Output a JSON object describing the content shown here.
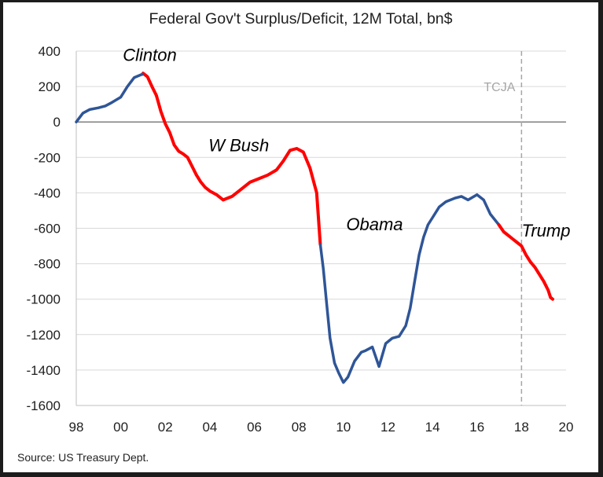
{
  "chart_data": {
    "type": "line",
    "title": "Federal Gov't Surplus/Deficit, 12M Total, bn$",
    "source": "Source: US Treasury Dept.",
    "xlabel": "",
    "ylabel": "",
    "xlim": [
      1998,
      2020
    ],
    "ylim": [
      -1600,
      400
    ],
    "x_ticks": [
      1998,
      2000,
      2002,
      2004,
      2006,
      2008,
      2010,
      2012,
      2014,
      2016,
      2018,
      2020
    ],
    "x_tick_labels": [
      "98",
      "00",
      "02",
      "04",
      "06",
      "08",
      "10",
      "12",
      "14",
      "16",
      "18",
      "20"
    ],
    "y_ticks": [
      400,
      200,
      0,
      -200,
      -400,
      -600,
      -800,
      -1000,
      -1200,
      -1400,
      -1600
    ],
    "y_tick_labels": [
      "400",
      "200",
      "0",
      "-200",
      "-400",
      "-600",
      "-800",
      "-1000",
      "-1200",
      "-1400",
      "-1600"
    ],
    "grid": "horizontal",
    "vline": {
      "x": 2018,
      "label": "TCJA",
      "color": "#aaaaaa"
    },
    "colors": {
      "blue": "#2f5597",
      "red": "#ff0000",
      "grid": "#d9d9d9",
      "zero": "#7f7f7f"
    },
    "series": [
      {
        "color": "red",
        "x": [
          2000.98,
          2001.0,
          2001.2,
          2001.4,
          2001.6,
          2001.8,
          2002.0,
          2002.2,
          2002.4,
          2002.6,
          2002.8,
          2003.0,
          2003.2,
          2003.4,
          2003.6,
          2003.8,
          2004.0,
          2004.3,
          2004.6,
          2005.0,
          2005.4,
          2005.8,
          2006.2,
          2006.6,
          2007.0,
          2007.3,
          2007.6,
          2007.9,
          2008.2,
          2008.5,
          2008.8,
          2008.96
        ],
        "y": [
          270,
          275,
          255,
          200,
          150,
          60,
          -10,
          -60,
          -130,
          -165,
          -180,
          -200,
          -250,
          -300,
          -340,
          -370,
          -390,
          -410,
          -440,
          -420,
          -380,
          -340,
          -320,
          -300,
          -270,
          -220,
          -160,
          -150,
          -170,
          -260,
          -400,
          -690
        ]
      },
      {
        "color": "blue",
        "x": [
          1998.0,
          1998.3,
          1998.6,
          1999.0,
          1999.3,
          1999.6,
          2000.0,
          2000.3,
          2000.6,
          2000.98
        ],
        "y": [
          0,
          50,
          70,
          80,
          90,
          110,
          140,
          200,
          250,
          270
        ]
      },
      {
        "color": "blue",
        "x": [
          2008.96,
          2009.1,
          2009.25,
          2009.4,
          2009.6,
          2009.8,
          2010.0,
          2010.2,
          2010.5,
          2010.8,
          2011.0,
          2011.3,
          2011.6,
          2011.9,
          2012.2,
          2012.5,
          2012.8,
          2013.0,
          2013.2,
          2013.4,
          2013.6,
          2013.8,
          2014.0,
          2014.3,
          2014.6,
          2015.0,
          2015.3,
          2015.6,
          2016.0,
          2016.3,
          2016.6,
          2016.98
        ],
        "y": [
          -690,
          -830,
          -1030,
          -1220,
          -1360,
          -1420,
          -1470,
          -1440,
          -1350,
          -1300,
          -1290,
          -1270,
          -1380,
          -1250,
          -1220,
          -1210,
          -1150,
          -1050,
          -900,
          -750,
          -650,
          -580,
          -540,
          -480,
          -450,
          -430,
          -420,
          -440,
          -410,
          -440,
          -520,
          -580
        ]
      },
      {
        "color": "red",
        "x": [
          2016.98,
          2017.2,
          2017.4,
          2017.6,
          2017.8,
          2018.0,
          2018.2,
          2018.4,
          2018.6,
          2018.8,
          2019.0,
          2019.2,
          2019.3,
          2019.4
        ],
        "y": [
          -580,
          -620,
          -640,
          -660,
          -680,
          -700,
          -750,
          -790,
          -820,
          -860,
          -900,
          -950,
          -990,
          -1000
        ]
      }
    ],
    "annotations": [
      {
        "text": "Clinton",
        "x": 2001.3,
        "y": 375
      },
      {
        "text": "W Bush",
        "x": 2005.3,
        "y": -135
      },
      {
        "text": "Obama",
        "x": 2011.4,
        "y": -580
      },
      {
        "text": "Trump",
        "x": 2019.1,
        "y": -615
      }
    ]
  }
}
